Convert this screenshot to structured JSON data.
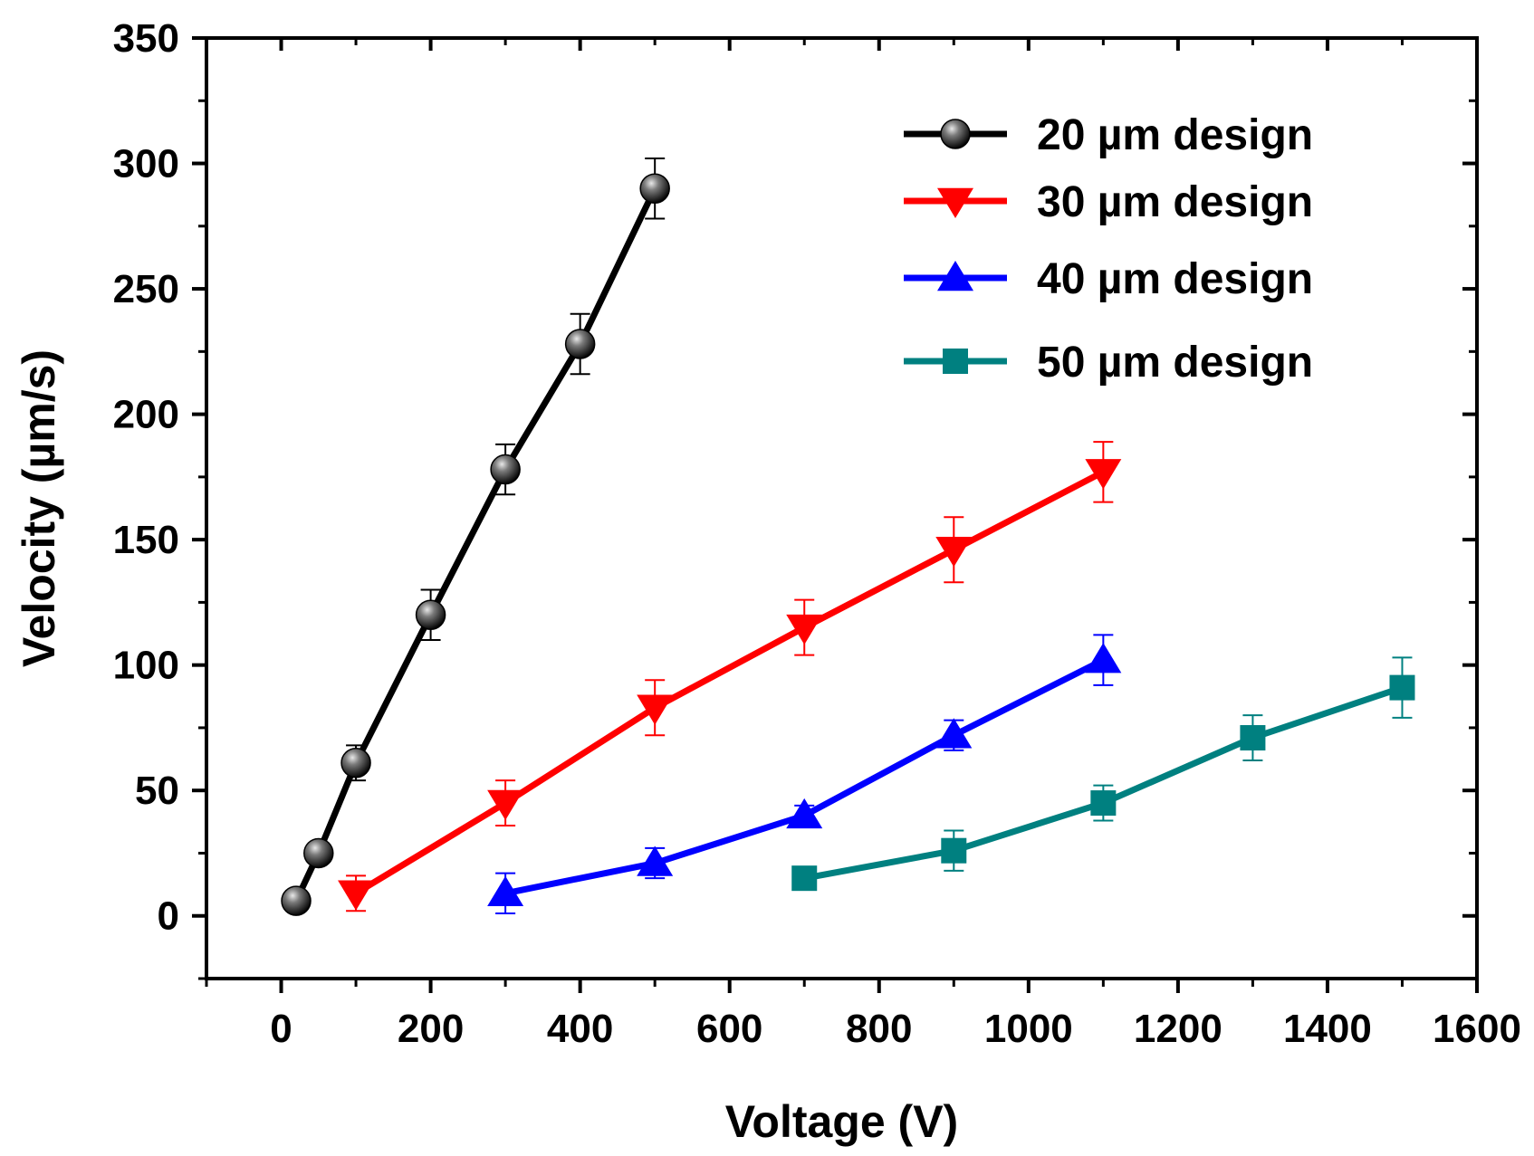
{
  "chart_data": {
    "type": "line",
    "title": "",
    "xlabel": "Voltage (V)",
    "ylabel": "Velocity (µm/s)",
    "xlim": [
      -100,
      1600
    ],
    "ylim": [
      -25,
      350
    ],
    "xticks": [
      0,
      200,
      400,
      600,
      800,
      1000,
      1200,
      1400,
      1600
    ],
    "xtick_labels": [
      "0",
      "200",
      "400",
      "600",
      "800",
      "1000",
      "1200",
      "1400",
      "1600"
    ],
    "yticks": [
      0,
      50,
      100,
      150,
      200,
      250,
      300,
      350
    ],
    "ytick_labels": [
      "0",
      "50",
      "100",
      "150",
      "200",
      "250",
      "300",
      "350"
    ],
    "grid": false,
    "legend_position": "top-right",
    "series": [
      {
        "name": "20 µm design",
        "marker": "sphere",
        "color": "#000000",
        "x": [
          20,
          50,
          100,
          200,
          300,
          400,
          500
        ],
        "y": [
          6,
          25,
          61,
          120,
          178,
          228,
          290
        ],
        "err": [
          2,
          3,
          7,
          10,
          10,
          12,
          12
        ]
      },
      {
        "name": "30 µm design",
        "marker": "triangle-down",
        "color": "#ff0000",
        "x": [
          100,
          300,
          500,
          700,
          900,
          1100
        ],
        "y": [
          9,
          45,
          83,
          115,
          146,
          177
        ],
        "err": [
          7,
          9,
          11,
          11,
          13,
          12
        ]
      },
      {
        "name": "40 µm design",
        "marker": "triangle-up",
        "color": "#0000ff",
        "x": [
          300,
          500,
          700,
          900,
          1100
        ],
        "y": [
          9,
          21,
          40,
          72,
          102
        ],
        "err": [
          8,
          6,
          4,
          6,
          10
        ]
      },
      {
        "name": "50 µm design",
        "marker": "square",
        "color": "#008080",
        "x": [
          700,
          900,
          1100,
          1300,
          1500
        ],
        "y": [
          15,
          26,
          45,
          71,
          91
        ],
        "err": [
          3,
          8,
          7,
          9,
          12
        ]
      }
    ]
  }
}
